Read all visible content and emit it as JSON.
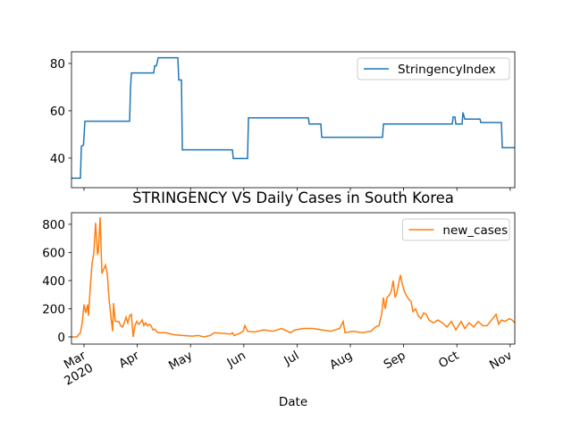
{
  "chart_data": [
    {
      "type": "line",
      "x": [
        2.765,
        2.933,
        2.95,
        2.99,
        3.017,
        3.856,
        3.872,
        3.889,
        4.309,
        4.326,
        4.359,
        4.393,
        4.762,
        4.779,
        4.829,
        4.846,
        5.785,
        5.802,
        6.07,
        6.087,
        7.211,
        7.228,
        7.446,
        7.463,
        8.604,
        8.621,
        9.913,
        9.93,
        9.963,
        9.98,
        10.097,
        10.114,
        10.147,
        10.433,
        10.45,
        10.836,
        10.852,
        11.087
      ],
      "series": [
        {
          "name": "StringencyIndex",
          "color": "#1f77b4",
          "values": [
            31.5,
            31.5,
            45,
            45.5,
            55.6,
            55.6,
            69,
            76,
            76,
            79,
            79,
            82.4,
            82.4,
            73,
            73,
            43.5,
            43.5,
            39.8,
            39.8,
            57,
            57,
            54.4,
            54.4,
            48.8,
            48.8,
            54.4,
            54.4,
            57.4,
            57.4,
            54.4,
            54.4,
            59.3,
            56.5,
            56.5,
            55,
            55,
            44.4,
            44.4
          ]
        }
      ],
      "xlim": [
        2.765,
        11.087
      ],
      "ylim": [
        27.5,
        84.9
      ],
      "yticks": [
        40,
        60,
        80
      ],
      "legend": "upper right"
    },
    {
      "type": "line",
      "title": "STRINGENCY VS Daily Cases in South Korea",
      "x": [
        2.765,
        2.866,
        2.933,
        2.966,
        3.0,
        3.034,
        3.067,
        3.084,
        3.117,
        3.151,
        3.185,
        3.218,
        3.252,
        3.268,
        3.302,
        3.336,
        3.369,
        3.403,
        3.436,
        3.47,
        3.503,
        3.537,
        3.554,
        3.587,
        3.621,
        3.654,
        3.688,
        3.721,
        3.755,
        3.789,
        3.822,
        3.856,
        3.889,
        3.923,
        3.956,
        3.99,
        4.023,
        4.057,
        4.091,
        4.124,
        4.158,
        4.191,
        4.225,
        4.258,
        4.292,
        4.326,
        4.359,
        4.393,
        4.527,
        4.695,
        4.862,
        5.03,
        5.148,
        5.248,
        5.366,
        5.45,
        5.617,
        5.752,
        5.785,
        5.819,
        5.919,
        5.987,
        6.02,
        6.07,
        6.205,
        6.372,
        6.54,
        6.708,
        6.876,
        6.96,
        7.128,
        7.295,
        7.463,
        7.631,
        7.799,
        7.866,
        7.899,
        8.05,
        8.218,
        8.386,
        8.47,
        8.537,
        8.587,
        8.621,
        8.654,
        8.688,
        8.738,
        8.772,
        8.805,
        8.839,
        8.872,
        8.906,
        8.94,
        8.973,
        9.007,
        9.057,
        9.091,
        9.141,
        9.175,
        9.225,
        9.275,
        9.326,
        9.376,
        9.426,
        9.477,
        9.56,
        9.644,
        9.728,
        9.812,
        9.896,
        9.98,
        10.013,
        10.081,
        10.148,
        10.232,
        10.316,
        10.4,
        10.483,
        10.567,
        10.651,
        10.735,
        10.785,
        10.836,
        10.903,
        10.987,
        11.037,
        11.087
      ],
      "series": [
        {
          "name": "new_cases",
          "color": "#ff7f0e",
          "values": [
            0,
            0,
            30,
            100,
            230,
            170,
            230,
            150,
            350,
            520,
            600,
            810,
            590,
            600,
            850,
            450,
            480,
            510,
            450,
            270,
            150,
            40,
            240,
            110,
            110,
            110,
            80,
            70,
            100,
            140,
            100,
            150,
            160,
            0,
            80,
            110,
            90,
            100,
            120,
            80,
            100,
            80,
            90,
            80,
            50,
            55,
            40,
            30,
            30,
            15,
            10,
            5,
            10,
            0,
            10,
            30,
            25,
            20,
            30,
            10,
            25,
            40,
            80,
            40,
            35,
            50,
            40,
            60,
            30,
            50,
            60,
            60,
            50,
            40,
            60,
            110,
            30,
            40,
            30,
            40,
            70,
            80,
            160,
            280,
            200,
            280,
            300,
            330,
            400,
            280,
            310,
            380,
            440,
            380,
            330,
            290,
            270,
            250,
            180,
            200,
            150,
            130,
            170,
            160,
            120,
            100,
            120,
            100,
            70,
            110,
            50,
            70,
            110,
            60,
            100,
            70,
            110,
            80,
            80,
            120,
            160,
            90,
            120,
            110,
            130,
            120,
            100
          ]
        }
      ],
      "xlim": [
        2.765,
        11.087
      ],
      "ylim": [
        -51,
        882
      ],
      "yticks": [
        0,
        200,
        400,
        600,
        800
      ],
      "xticks": [
        {
          "value": 3,
          "label": "Mar"
        },
        {
          "value": 4,
          "label": "Apr"
        },
        {
          "value": 5,
          "label": "May"
        },
        {
          "value": 6,
          "label": "Jun"
        },
        {
          "value": 7,
          "label": "Jul"
        },
        {
          "value": 8,
          "label": "Aug"
        },
        {
          "value": 9,
          "label": "Sep"
        },
        {
          "value": 10,
          "label": "Oct"
        },
        {
          "value": 11,
          "label": "Nov"
        }
      ],
      "xtick_year": "2020",
      "xlabel": "Date",
      "legend": "upper right"
    }
  ]
}
